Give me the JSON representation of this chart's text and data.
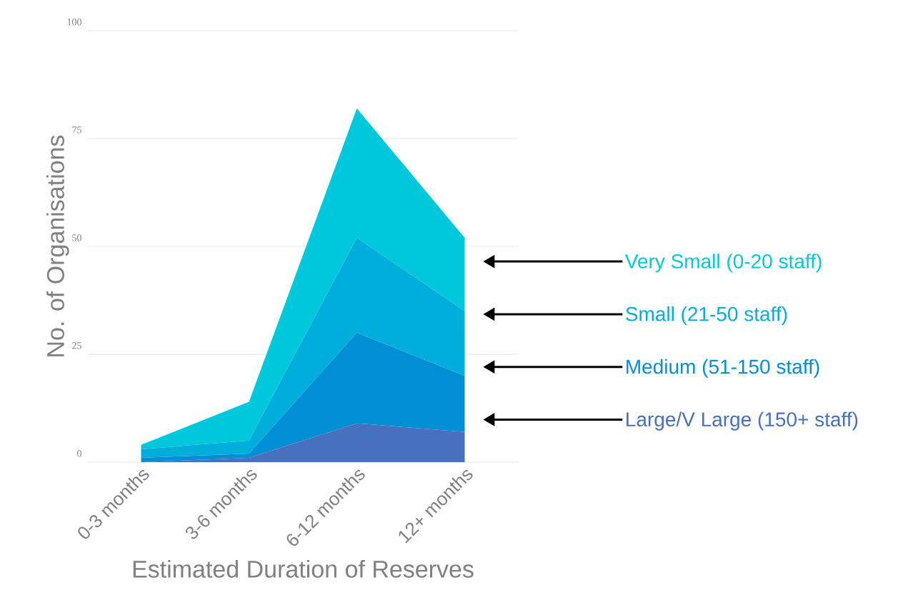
{
  "chart_data": {
    "type": "area",
    "stacked": true,
    "xlabel": "Estimated Duration of Reserves",
    "ylabel": "No. of Organisations",
    "categories": [
      "0-3 months",
      "3-6 months",
      "6-12 months",
      "12+ months"
    ],
    "series": [
      {
        "name": "Large/V Large (150+ staff)",
        "color": "#4770bf",
        "values": [
          0,
          1,
          9,
          7
        ]
      },
      {
        "name": "Medium (51-150 staff)",
        "color": "#008fd5",
        "values": [
          1,
          1,
          21,
          13
        ]
      },
      {
        "name": "Small (21-50 staff)",
        "color": "#00aedc",
        "values": [
          2,
          3,
          22,
          15
        ]
      },
      {
        "name": "Very Small (0-20 staff)",
        "color": "#00c8dc",
        "values": [
          1,
          9,
          30,
          17
        ]
      }
    ],
    "ylim": [
      0,
      100
    ],
    "yticks": [
      0,
      25,
      50,
      75,
      100
    ],
    "grid": "y",
    "legend": "right"
  }
}
